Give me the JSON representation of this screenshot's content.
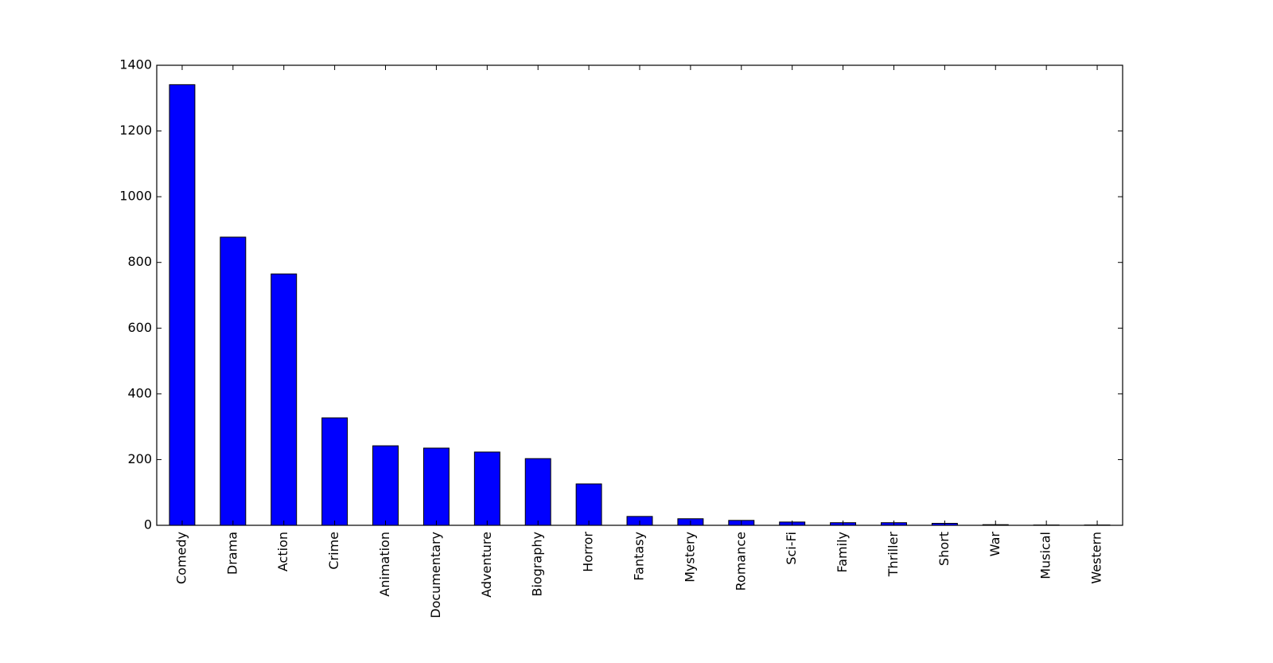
{
  "chart_data": {
    "type": "bar",
    "categories": [
      "Comedy",
      "Drama",
      "Action",
      "Crime",
      "Animation",
      "Documentary",
      "Adventure",
      "Biography",
      "Horror",
      "Fantasy",
      "Mystery",
      "Romance",
      "Sci-Fi",
      "Family",
      "Thriller",
      "Short",
      "War",
      "Musical",
      "Western"
    ],
    "values": [
      1341,
      877,
      765,
      327,
      242,
      235,
      223,
      203,
      126,
      27,
      20,
      15,
      10,
      8,
      8,
      6,
      2,
      1,
      1
    ],
    "color": "#0000ff",
    "ylim": [
      0,
      1400
    ],
    "yticks": [
      0,
      200,
      400,
      600,
      800,
      1000,
      1200,
      1400
    ],
    "grid": false
  }
}
